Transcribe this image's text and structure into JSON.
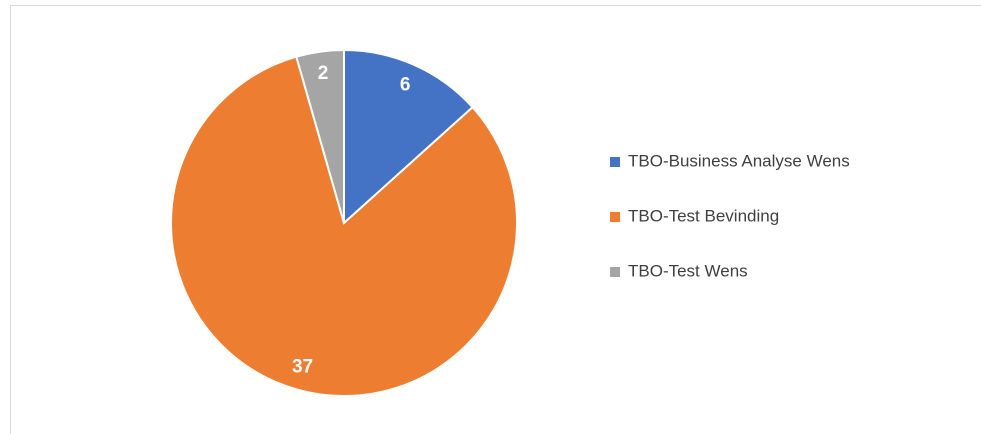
{
  "chart_data": {
    "type": "pie",
    "categories": [
      "TBO-Business Analyse Wens",
      "TBO-Test Bevinding",
      "TBO-Test Wens"
    ],
    "values": [
      6,
      37,
      2
    ],
    "colors": [
      "#4472c4",
      "#ed7d31",
      "#a5a5a5"
    ],
    "legend": "right"
  }
}
